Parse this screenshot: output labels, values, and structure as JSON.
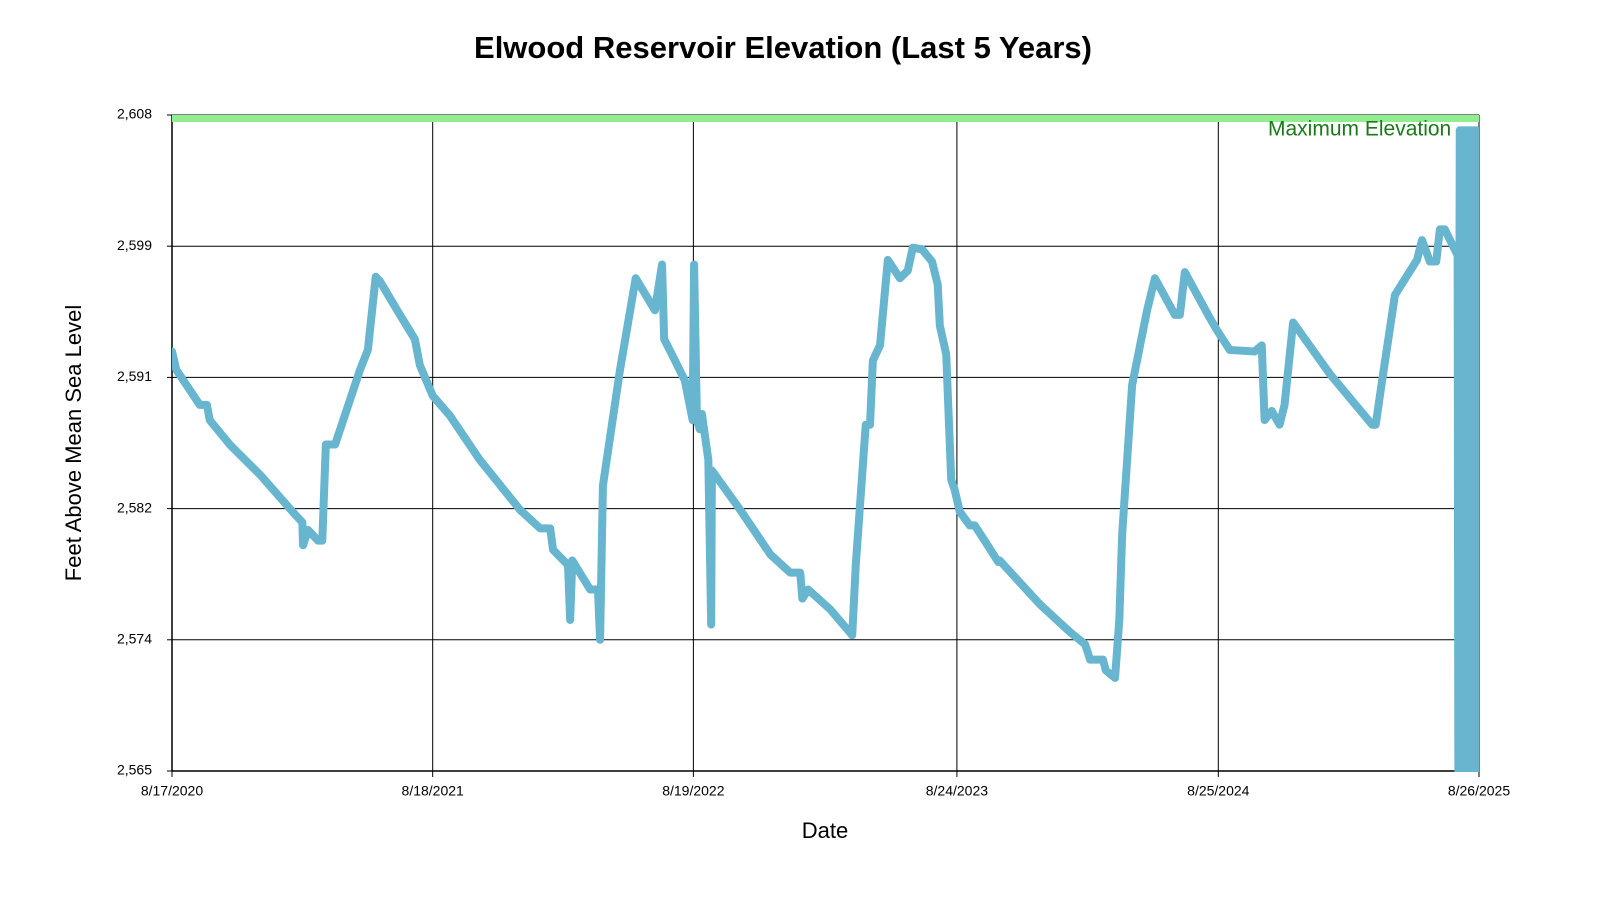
{
  "chart_data": {
    "type": "line",
    "title": "Elwood Reservoir Elevation (Last 5 Years)",
    "x_label": "Date",
    "y_label": "Feet Above Mean Sea Level",
    "color": "#67b5cf",
    "grid": true,
    "xlim": [
      "8/17/2020",
      "8/26/2025"
    ],
    "xticks": [
      "8/17/2020",
      "8/18/2021",
      "8/19/2022",
      "8/24/2023",
      "8/25/2024",
      "8/26/2025"
    ],
    "ylim": [
      2565,
      2608
    ],
    "yticks": [
      {
        "value": 2565,
        "label": "2,565"
      },
      {
        "value": 2573.6,
        "label": "2,574"
      },
      {
        "value": 2582.2,
        "label": "2,582"
      },
      {
        "value": 2590.8,
        "label": "2,591"
      },
      {
        "value": 2599.4,
        "label": "2,599"
      },
      {
        "value": 2608,
        "label": "2,608"
      }
    ],
    "reference_line": {
      "value": 2608,
      "label": "Maximum Elevation",
      "color": "#90ee90",
      "text_color": "#1a7a1a"
    },
    "x": [
      "8/17/2020",
      "8/23/2020",
      "9/25/2020",
      "10/5/2020",
      "10/9/2020",
      "11/6/2020",
      "12/19/2020",
      "2/6/2021",
      "2/16/2021",
      "2/17/2021",
      "2/24/2021",
      "3/10/2021",
      "3/16/2021",
      "3/21/2021",
      "4/3/2021",
      "5/8/2021",
      "5/19/2021",
      "5/30/2021",
      "6/5/2021",
      "7/3/2021",
      "7/24/2021",
      "7/31/2021",
      "8/18/2021",
      "9/11/2021",
      "10/23/2021",
      "12/19/2021",
      "1/16/2022",
      "1/30/2022",
      "2/3/2022",
      "2/24/2022",
      "2/27/2022",
      "3/2/2022",
      "3/27/2022",
      "4/7/2022",
      "4/10/2022",
      "4/14/2022",
      "5/8/2022",
      "5/30/2022",
      "6/26/2022",
      "7/6/2022",
      "7/9/2022",
      "7/20/2022",
      "8/7/2022",
      "8/18/2022",
      "8/20/2022",
      "8/24/2022",
      "8/28/2022",
      "8/31/2022",
      "9/9/2022",
      "9/13/2022",
      "9/14/2022",
      "10/24/2022",
      "12/5/2022",
      "1/2/2023",
      "1/16/2023",
      "1/19/2023",
      "1/27/2023",
      "2/27/2023",
      "3/30/2023",
      "4/4/2023",
      "4/18/2023",
      "4/24/2023",
      "4/28/2023",
      "5/8/2023",
      "5/19/2023",
      "6/5/2023",
      "6/16/2023",
      "6/23/2023",
      "7/6/2023",
      "7/20/2023",
      "7/28/2023",
      "7/31/2023",
      "8/9/2023",
      "8/16/2023",
      "8/21/2023",
      "8/28/2023",
      "9/11/2023",
      "9/18/2023",
      "10/2/2023",
      "10/21/2023",
      "10/23/2023",
      "12/19/2023",
      "1/30/2024",
      "2/20/2024",
      "2/27/2024",
      "3/16/2024",
      "3/20/2024",
      "4/2/2024",
      "4/8/2024",
      "4/12/2024",
      "4/26/2024",
      "5/17/2024",
      "5/28/2024",
      "6/25/2024",
      "7/2/2024",
      "7/9/2024",
      "7/30/2024",
      "8/13/2024",
      "8/23/2024",
      "9/10/2024",
      "10/15/2024",
      "10/25/2024",
      "10/29/2024",
      "11/8/2024",
      "11/19/2024",
      "11/26/2024",
      "12/8/2024",
      "1/29/2025",
      "3/29/2025",
      "4/3/2025",
      "4/12/2025",
      "4/30/2025",
      "5/31/2025",
      "6/7/2025",
      "6/18/2025",
      "6/27/2025",
      "7/2/2025",
      "7/9/2025",
      "7/27/2025",
      "7/28/2025",
      "7/30/2025",
      "8/1/2025",
      "8/3/2025",
      "8/5/2025",
      "8/7/2025",
      "8/9/2025",
      "8/11/2025",
      "8/13/2025",
      "8/15/2025",
      "8/17/2025",
      "8/19/2025",
      "8/21/2025",
      "8/23/2025",
      "8/24/2025",
      "8/25/2025",
      "8/26/2025"
    ],
    "values": [
      2592.5,
      2591.3,
      2589.0,
      2589.0,
      2588.0,
      2586.4,
      2584.4,
      2581.8,
      2581.3,
      2579.8,
      2580.8,
      2580.1,
      2580.1,
      2586.4,
      2586.4,
      2591.3,
      2592.6,
      2597.4,
      2597.1,
      2594.9,
      2593.3,
      2591.6,
      2589.6,
      2588.3,
      2585.4,
      2582.1,
      2580.9,
      2580.9,
      2579.5,
      2578.5,
      2574.9,
      2578.8,
      2576.9,
      2576.9,
      2573.6,
      2583.7,
      2591.3,
      2597.3,
      2595.2,
      2598.2,
      2593.3,
      2592.3,
      2590.6,
      2588.0,
      2598.2,
      2588.0,
      2587.4,
      2588.4,
      2585.4,
      2574.6,
      2584.7,
      2582.1,
      2579.2,
      2578.0,
      2578.0,
      2576.3,
      2576.9,
      2575.6,
      2573.9,
      2578.5,
      2587.7,
      2587.7,
      2591.9,
      2592.9,
      2598.5,
      2597.3,
      2597.8,
      2599.3,
      2599.2,
      2598.4,
      2596.9,
      2594.2,
      2592.3,
      2584.1,
      2583.4,
      2582.0,
      2581.1,
      2581.1,
      2580.1,
      2578.7,
      2578.8,
      2575.9,
      2574.1,
      2573.3,
      2572.3,
      2572.3,
      2571.6,
      2571.1,
      2574.9,
      2580.5,
      2590.3,
      2595.2,
      2597.3,
      2594.9,
      2594.9,
      2597.7,
      2595.9,
      2594.7,
      2593.9,
      2592.6,
      2592.5,
      2592.9,
      2588.0,
      2588.6,
      2587.7,
      2589.0,
      2594.4,
      2591.0,
      2587.7,
      2587.7,
      2590.6,
      2596.2,
      2598.5,
      2599.8,
      2598.4,
      2598.4,
      2600.5,
      2600.5,
      2598.8,
      2565,
      2607,
      2565,
      2607,
      2565,
      2607,
      2565,
      2607,
      2565,
      2607,
      2565,
      2607,
      2565,
      2607,
      2565,
      2592,
      2596.5
    ]
  }
}
